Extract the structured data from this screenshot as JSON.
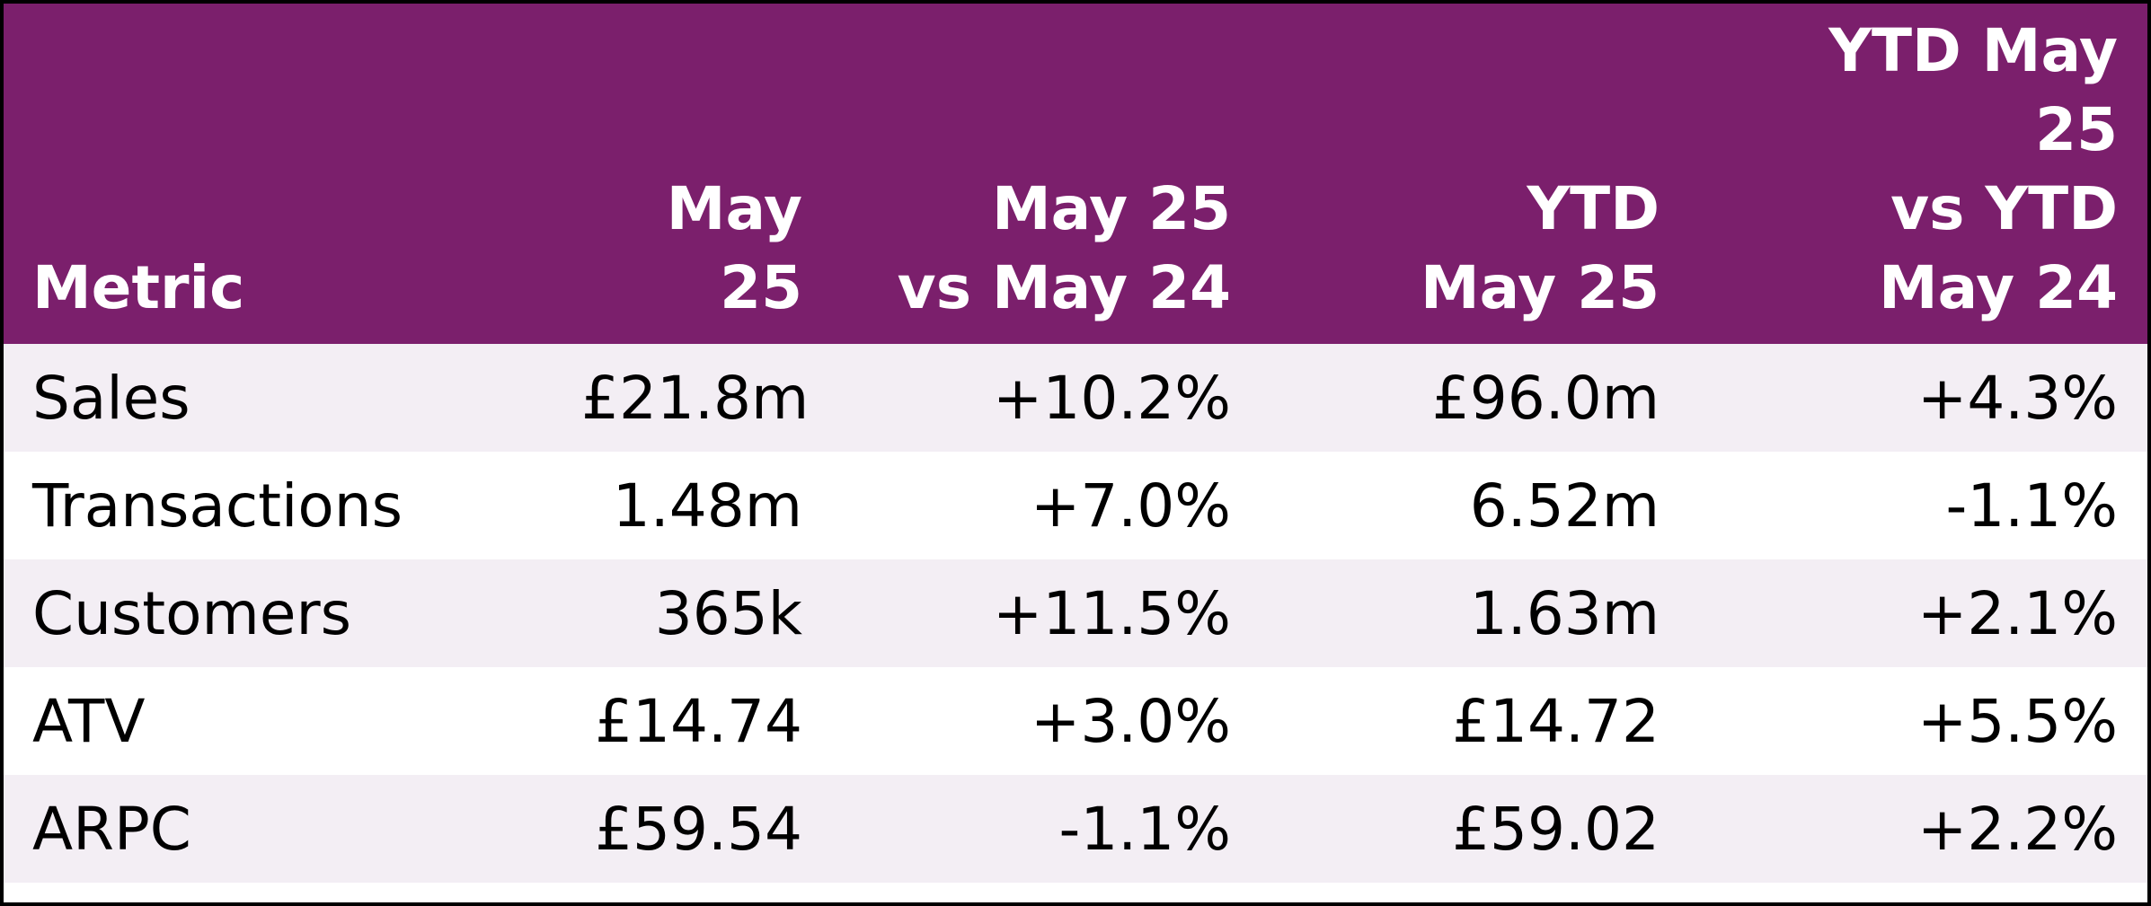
{
  "chart_data": {
    "type": "table",
    "columns": [
      "Metric",
      "May 25",
      "May 25 vs May 24",
      "YTD May 25",
      "YTD May 25 vs YTD May 24"
    ],
    "header_lines": [
      [
        "Metric"
      ],
      [
        "May 25"
      ],
      [
        "May 25",
        "vs May 24"
      ],
      [
        "YTD",
        "May 25"
      ],
      [
        "YTD May",
        "25",
        "vs YTD",
        "May 24"
      ]
    ],
    "rows": [
      [
        "Sales",
        "£21.8m",
        "+10.2%",
        "£96.0m",
        "+4.3%"
      ],
      [
        "Transactions",
        "1.48m",
        "+7.0%",
        "6.52m",
        "-1.1%"
      ],
      [
        "Customers",
        "365k",
        "+11.5%",
        "1.63m",
        "+2.1%"
      ],
      [
        "ATV",
        "£14.74",
        "+3.0%",
        "£14.72",
        "+5.5%"
      ],
      [
        "ARPC",
        "£59.54",
        "-1.1%",
        "£59.02",
        "+2.2%"
      ]
    ]
  },
  "colors": {
    "header_background": "#7b1f6c",
    "header_text": "#ffffff",
    "row_shade": "#f3eef4",
    "row_plain": "#ffffff",
    "border": "#000000"
  }
}
